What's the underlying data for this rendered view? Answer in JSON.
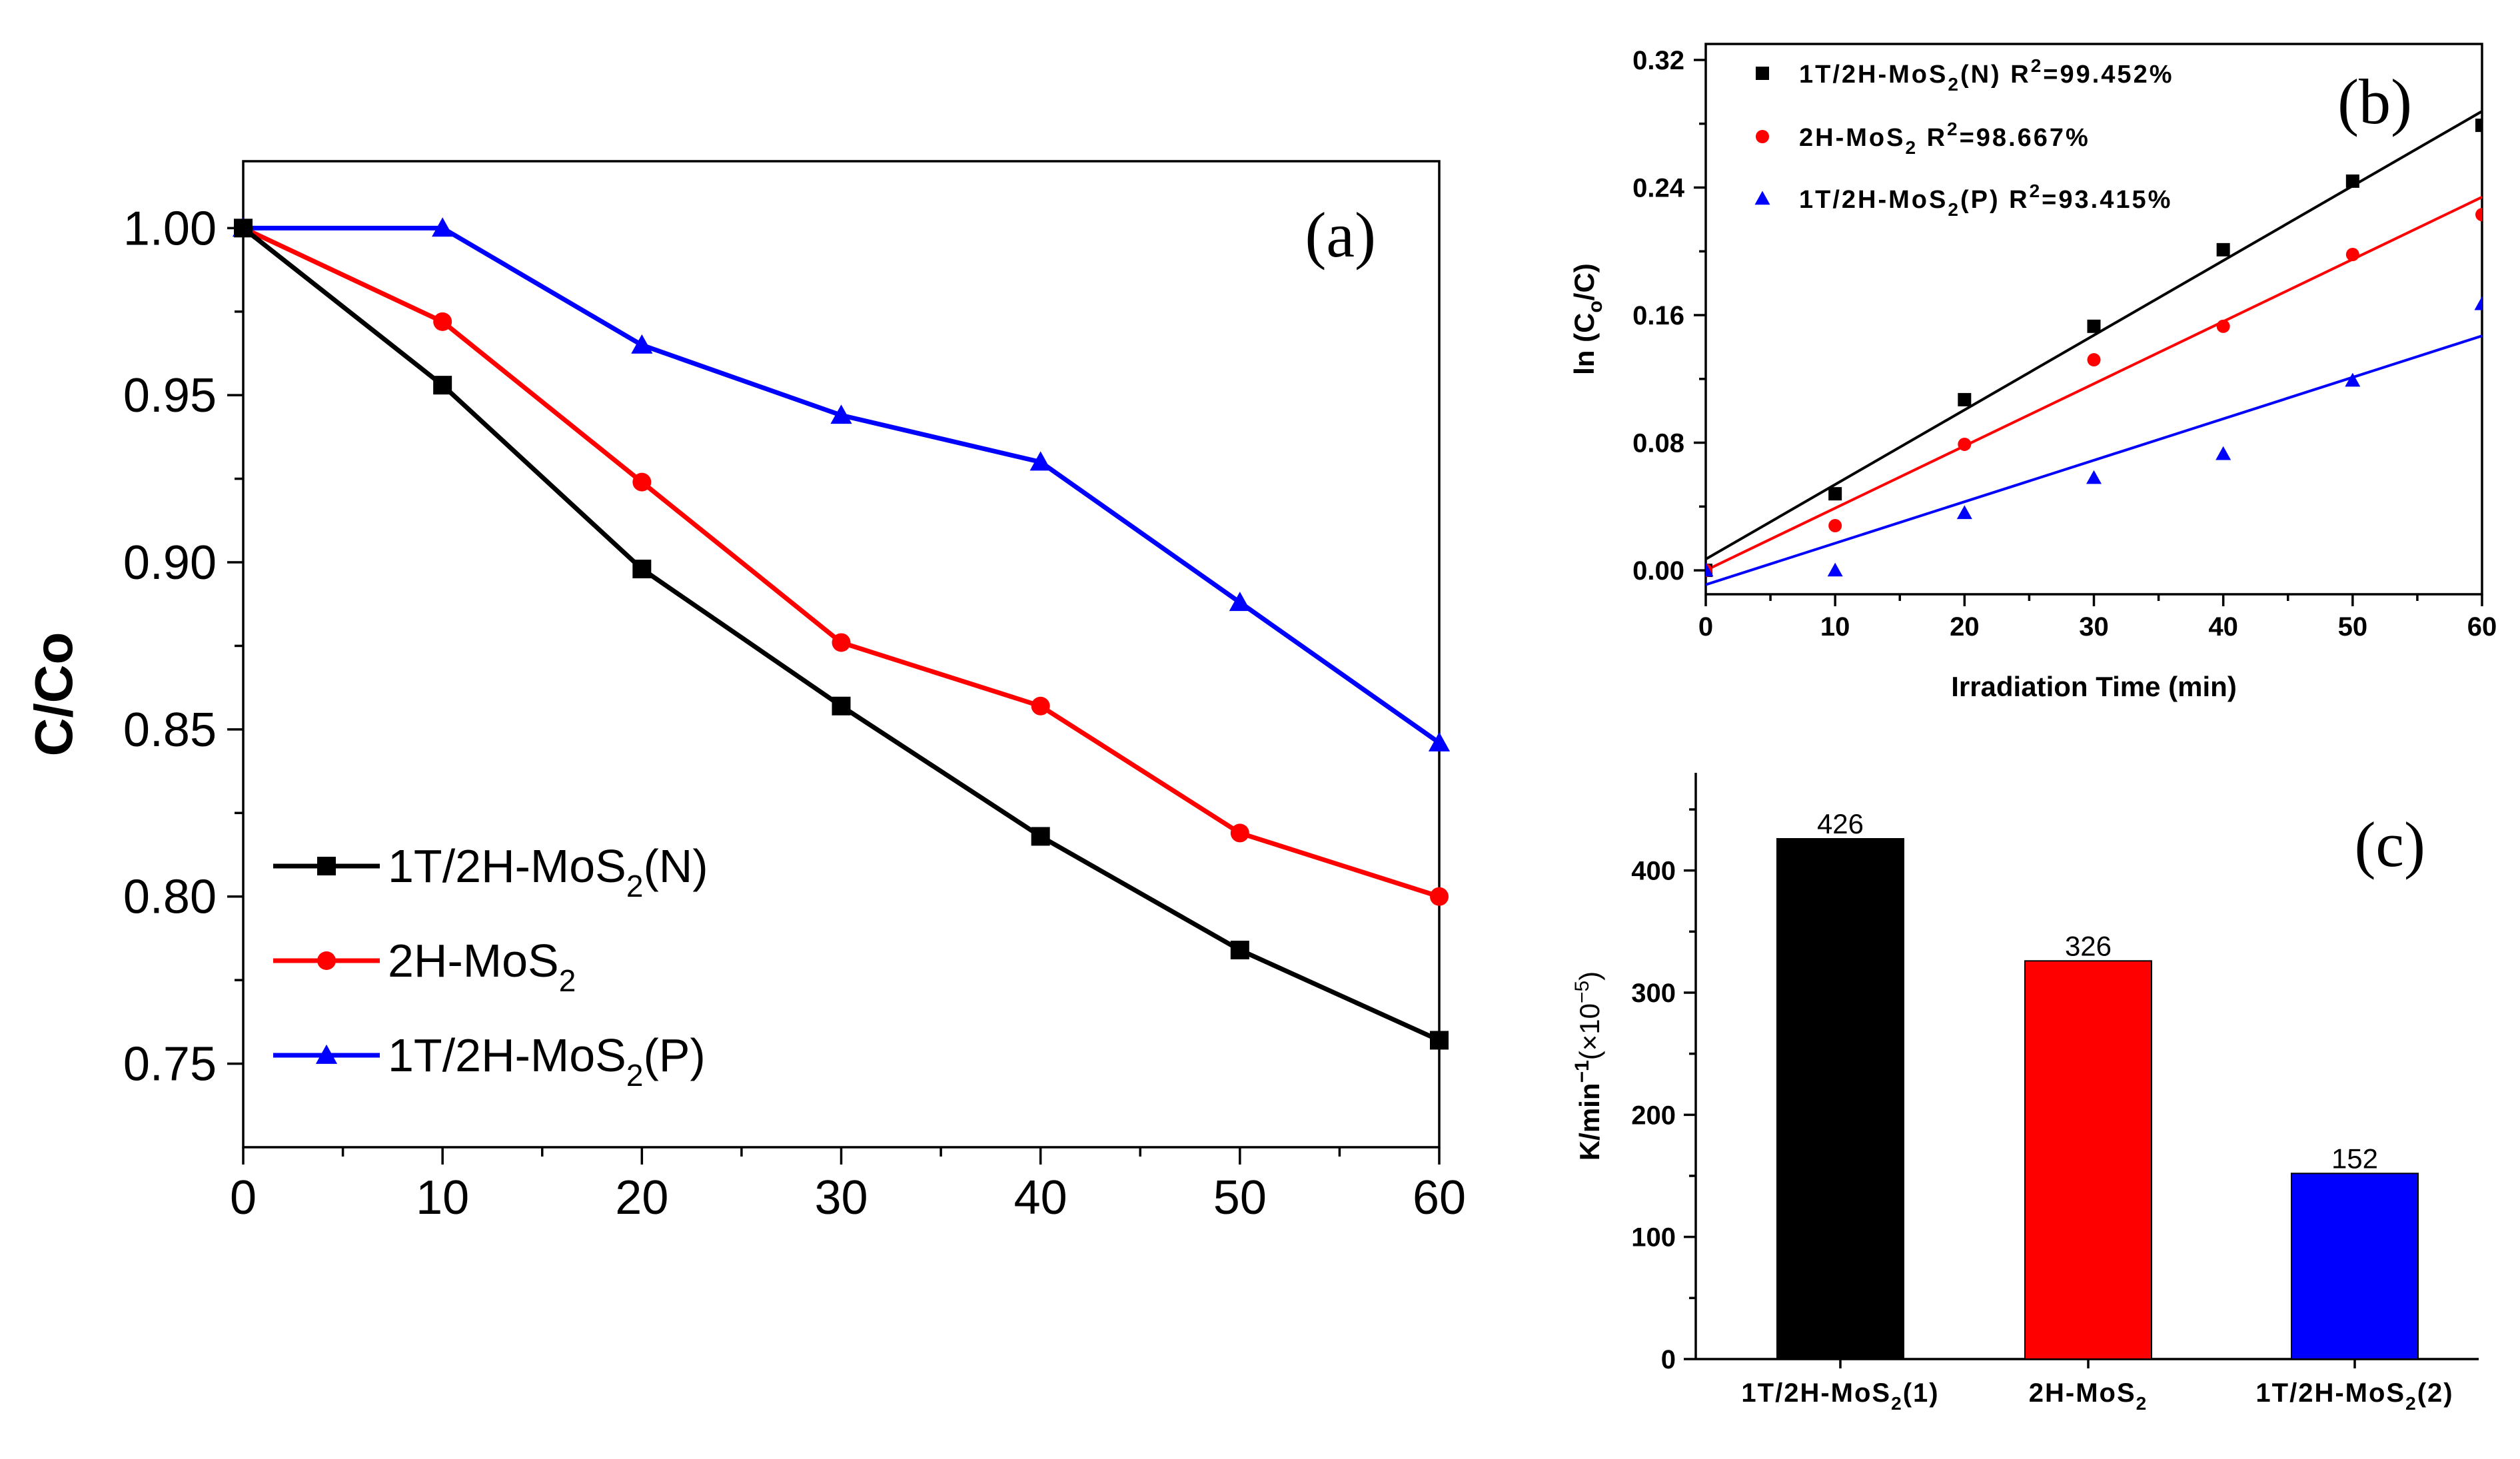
{
  "chart_data": [
    {
      "id": "a",
      "type": "line",
      "panel_label": "(a)",
      "ylabel": "C/Co",
      "xlabel": "",
      "x": [
        0,
        10,
        20,
        30,
        40,
        50,
        60
      ],
      "xlim": [
        0,
        60
      ],
      "ylim": [
        0.725,
        1.02
      ],
      "xticks": [
        "0",
        "10",
        "20",
        "30",
        "40",
        "50",
        "60"
      ],
      "yticks": [
        "0.75",
        "0.80",
        "0.85",
        "0.90",
        "0.95",
        "1.00"
      ],
      "series": [
        {
          "name": "1T/2H-MoS2(N)",
          "legend": {
            "pre": "1T/2H-MoS",
            "sub": "2",
            "post": "(N)"
          },
          "color": "#000000",
          "marker": "square",
          "values": [
            1.0,
            0.953,
            0.898,
            0.857,
            0.818,
            0.784,
            0.757
          ]
        },
        {
          "name": "2H-MoS2",
          "legend": {
            "pre": "2H-MoS",
            "sub": "2",
            "post": ""
          },
          "color": "#ff0000",
          "marker": "circle",
          "values": [
            1.0,
            0.972,
            0.924,
            0.876,
            0.857,
            0.819,
            0.8
          ]
        },
        {
          "name": "1T/2H-MoS2(P)",
          "legend": {
            "pre": "1T/2H-MoS",
            "sub": "2",
            "post": "(P)"
          },
          "color": "#0000ff",
          "marker": "triangle",
          "values": [
            1.0,
            1.0,
            0.965,
            0.944,
            0.93,
            0.888,
            0.846
          ]
        }
      ]
    },
    {
      "id": "b",
      "type": "scatter",
      "panel_label": "(b)",
      "xlabel": "Irradiation Time (min)",
      "ylabel_parts": {
        "pre": "ln (C",
        "sub": "o",
        "post": "/C)"
      },
      "x": [
        0,
        10,
        20,
        30,
        40,
        50,
        60
      ],
      "xlim": [
        0,
        60
      ],
      "ylim": [
        -0.015,
        0.33
      ],
      "xticks": [
        "0",
        "10",
        "20",
        "30",
        "40",
        "50",
        "60"
      ],
      "yticks": [
        "0.00",
        "0.08",
        "0.16",
        "0.24",
        "0.32"
      ],
      "series": [
        {
          "name": "1T/2H-MoS2(N) R2=99.452%",
          "legend": {
            "pre": "1T/2H-MoS",
            "sub": "2",
            "mid": "(N)  R",
            "sup": "2",
            "post": "=99.452%"
          },
          "color": "#000000",
          "marker": "square",
          "values": [
            0.0,
            0.048,
            0.107,
            0.153,
            0.201,
            0.244,
            0.279
          ],
          "fit": {
            "intercept": 0.007,
            "slope": 0.00468
          }
        },
        {
          "name": "2H-MoS2 R2=98.667%",
          "legend": {
            "pre": "2H-MoS",
            "sub": "2",
            "mid": " R",
            "sup": "2",
            "post": "=98.667%"
          },
          "color": "#ff0000",
          "marker": "circle",
          "values": [
            0.0,
            0.028,
            0.079,
            0.132,
            0.153,
            0.198,
            0.223
          ],
          "fit": {
            "intercept": 0.0,
            "slope": 0.0039
          }
        },
        {
          "name": "1T/2H-MoS2(P) R2=93.415%",
          "legend": {
            "pre": "1T/2H-MoS",
            "sub": "2",
            "mid": "(P) R",
            "sup": "2",
            "post": "=93.415%"
          },
          "color": "#0000ff",
          "marker": "triangle",
          "values": [
            0.0,
            0.0,
            0.036,
            0.058,
            0.073,
            0.119,
            0.167
          ],
          "fit": {
            "intercept": -0.009,
            "slope": 0.0026
          }
        }
      ]
    },
    {
      "id": "c",
      "type": "bar",
      "panel_label": "(c)",
      "ylabel_parts": {
        "pre": "K/min",
        "sup1": "−1",
        "mid": "(×10",
        "sup2": "−5",
        "post": ")"
      },
      "ylim": [
        0,
        480
      ],
      "yticks": [
        "0",
        "100",
        "200",
        "300",
        "400"
      ],
      "categories": [
        {
          "name": "1T/2H-MoS2(1)",
          "pre": "1T/2H-MoS",
          "sub": "2",
          "post": "(1)"
        },
        {
          "name": "2H-MoS2",
          "pre": "2H-MoS",
          "sub": "2",
          "post": ""
        },
        {
          "name": "1T/2H-MoS2(2)",
          "pre": "1T/2H-MoS",
          "sub": "2",
          "post": "(2)"
        }
      ],
      "values": [
        426,
        326,
        152
      ],
      "value_labels": [
        "426",
        "326",
        "152"
      ],
      "colors": [
        "#000000",
        "#ff0000",
        "#0000ff"
      ]
    }
  ]
}
